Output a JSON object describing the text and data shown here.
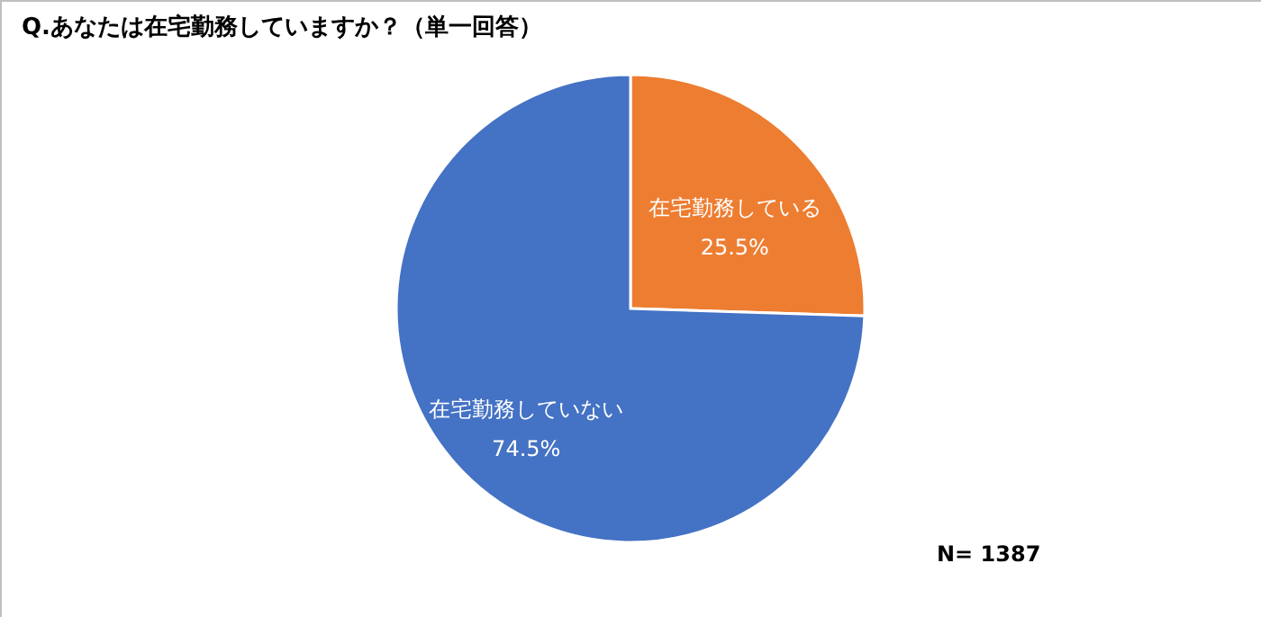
{
  "chart_data": {
    "type": "pie",
    "title": "Q.あなたは在宅勤務していますか？（単一回答）",
    "categories": [
      "在宅勤務している",
      "在宅勤務していない"
    ],
    "values": [
      25.5,
      74.5
    ],
    "colors": [
      "#ed7d31",
      "#4472c4"
    ],
    "value_labels": [
      "25.5%",
      "74.5%"
    ],
    "annotations": [
      "N= 1387"
    ],
    "legend": false
  }
}
